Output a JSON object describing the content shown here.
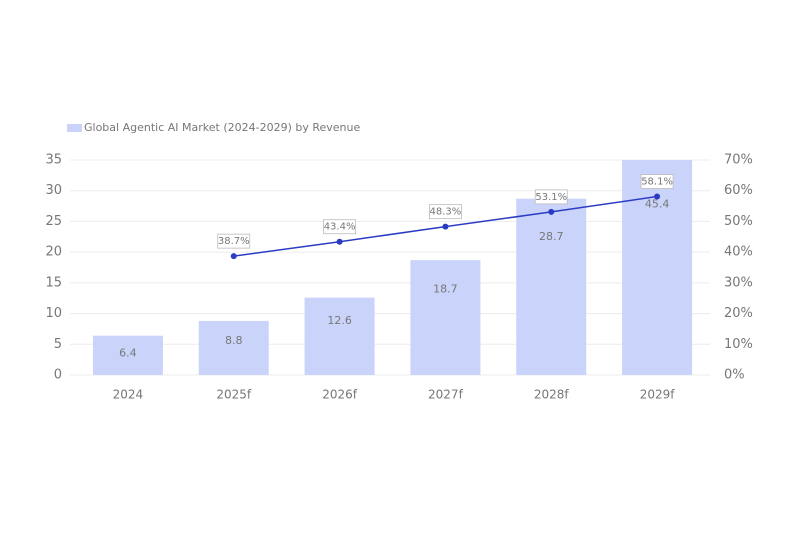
{
  "chart_data": {
    "type": "bar-line",
    "categories": [
      "2024",
      "2025f",
      "2026f",
      "2027f",
      "2028f",
      "2029f"
    ],
    "series": [
      {
        "name": "Global Agentic AI Market (2024-2029) by Revenue",
        "type": "bar",
        "color": "#cad4fb",
        "values": [
          6.4,
          8.8,
          12.6,
          18.7,
          28.7,
          45.4
        ]
      },
      {
        "type": "line",
        "axis": "y2",
        "color": "#2b3cc4",
        "values": [
          null,
          38.7,
          43.4,
          48.3,
          53.1,
          58.1
        ],
        "value_labels": [
          null,
          "38.7%",
          "43.4%",
          "48.3%",
          "53.1%",
          "58.1%"
        ]
      }
    ],
    "ylim": [
      0,
      35
    ],
    "yticks": [
      0,
      5,
      10,
      15,
      20,
      25,
      30,
      35
    ],
    "y2lim": [
      0,
      70
    ],
    "y2ticks": [
      {
        "value": 0,
        "label": "0%"
      },
      {
        "value": 10,
        "label": "10%"
      },
      {
        "value": 20,
        "label": "20%"
      },
      {
        "value": 30,
        "label": "30%"
      },
      {
        "value": 40,
        "label": "40%"
      },
      {
        "value": 50,
        "label": "50%"
      },
      {
        "value": 60,
        "label": "60%"
      },
      {
        "value": 70,
        "label": "70%"
      }
    ],
    "grid": true,
    "legend": "top-left"
  }
}
